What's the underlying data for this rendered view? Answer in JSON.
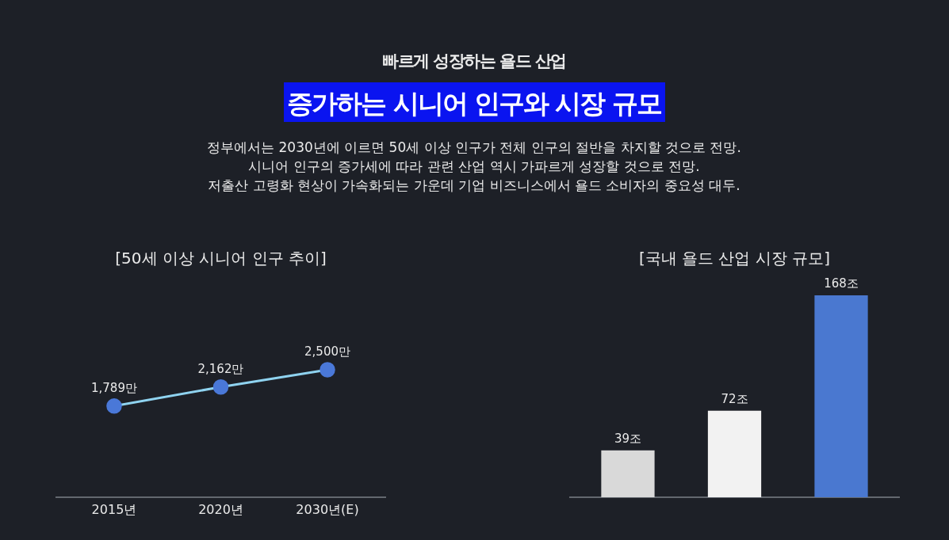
{
  "chart_data": [
    {
      "type": "other",
      "subtitle": "빠르게 성장하는 욜드 산업",
      "title": "증가하는 시니어 인구와 시장 규모",
      "annotations": [
        "정부에서는 2030년에 이르면 50세 이상 인구가 전체 인구의 절반을 차지할 것으로 전망.",
        "시니어 인구의 증가세에 따라 관련 산업 역시 가파르게 성장할 것으로 전망.",
        "저출산 고령화 현상이 가속화되는 가운데 기업 비즈니스에서 욜드 소비자의 중요성 대두."
      ]
    },
    {
      "type": "line",
      "title": "[50세 이상 시니어 인구 추이]",
      "categories": [
        "2015년",
        "2020년",
        "2030년(E)"
      ],
      "values": [
        1789,
        2162,
        2500
      ],
      "value_labels": [
        "1,789만",
        "2,162만",
        "2,500만"
      ],
      "color": "#8fd3f0",
      "marker": "circle",
      "tick_labels": "x"
    },
    {
      "type": "bar",
      "title": "[국내 욜드 산업 시장 규모]",
      "categories": [
        null,
        null,
        null
      ],
      "values": [
        39,
        72,
        168
      ],
      "value_labels": [
        "39조",
        "72조",
        "168조"
      ],
      "colors": [
        "#d9d9d9",
        "#f2f2f2",
        "#4a78d0"
      ],
      "tick_labels": false
    }
  ]
}
